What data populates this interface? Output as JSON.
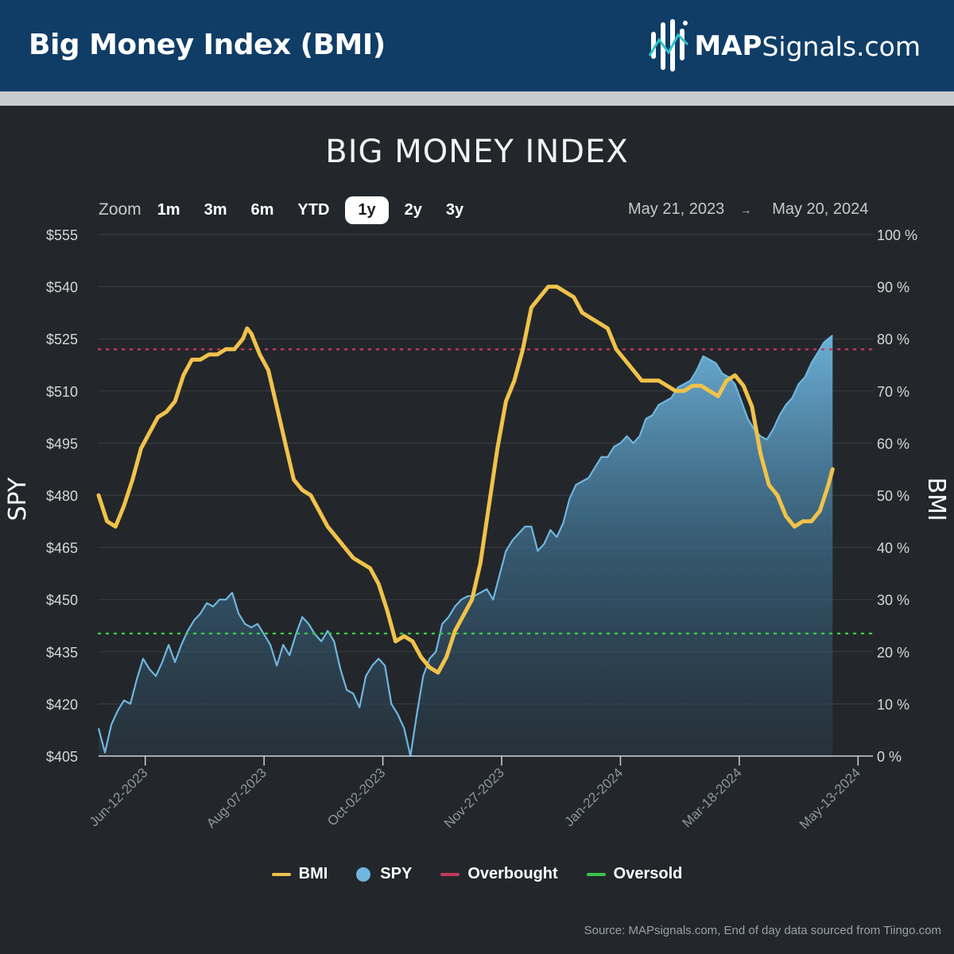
{
  "header": {
    "title": "Big Money Index (BMI)",
    "brand_strong": "MAP",
    "brand_rest": "Signals.com"
  },
  "toolbar": {
    "zoom_label": "Zoom",
    "zoom_options": [
      "1m",
      "3m",
      "6m",
      "YTD",
      "1y",
      "2y",
      "3y"
    ],
    "zoom_selected": "1y",
    "range_start": "May 21, 2023",
    "range_arrow": "→",
    "range_end": "May 20, 2024"
  },
  "colors": {
    "bmi": "#f0c24a",
    "spy": "#6fb6df",
    "overbought": "#c23a5a",
    "oversold": "#3cc24a"
  },
  "chart_data": {
    "type": "line",
    "title": "BIG MONEY INDEX",
    "ylabel_left": "SPY",
    "ylabel_right": "BMI",
    "y_left_ticks": [
      "$405",
      "$420",
      "$435",
      "$450",
      "$465",
      "$480",
      "$495",
      "$510",
      "$525",
      "$540",
      "$555"
    ],
    "y_left_range": [
      405,
      555
    ],
    "y_right_ticks": [
      "0 %",
      "10 %",
      "20 %",
      "30 %",
      "40 %",
      "50 %",
      "60 %",
      "70 %",
      "80 %",
      "90 %",
      "100 %"
    ],
    "y_right_range": [
      0,
      100
    ],
    "x_ticks": [
      {
        "label": "Jun-12-2023",
        "day": 22
      },
      {
        "label": "Aug-07-2023",
        "day": 78
      },
      {
        "label": "Oct-02-2023",
        "day": 134
      },
      {
        "label": "Nov-27-2023",
        "day": 190
      },
      {
        "label": "Jan-22-2024",
        "day": 246
      },
      {
        "label": "Mar-18-2024",
        "day": 302
      },
      {
        "label": "May-13-2024",
        "day": 358
      }
    ],
    "x_range_days": [
      0,
      365
    ],
    "overbought_level": 78,
    "oversold_level": 23.5,
    "legend": [
      "BMI",
      "SPY",
      "Overbought",
      "Oversold"
    ],
    "series": [
      {
        "name": "BMI",
        "unit": "%",
        "points": [
          [
            0,
            50
          ],
          [
            4,
            45
          ],
          [
            8,
            44
          ],
          [
            12,
            48
          ],
          [
            16,
            53
          ],
          [
            20,
            59
          ],
          [
            24,
            62
          ],
          [
            28,
            65
          ],
          [
            32,
            66
          ],
          [
            36,
            68
          ],
          [
            40,
            73
          ],
          [
            44,
            76
          ],
          [
            48,
            76
          ],
          [
            52,
            77
          ],
          [
            56,
            77
          ],
          [
            60,
            78
          ],
          [
            64,
            78
          ],
          [
            68,
            80
          ],
          [
            70,
            82
          ],
          [
            72,
            81
          ],
          [
            76,
            77
          ],
          [
            80,
            74
          ],
          [
            84,
            67
          ],
          [
            88,
            60
          ],
          [
            92,
            53
          ],
          [
            96,
            51
          ],
          [
            100,
            50
          ],
          [
            104,
            47
          ],
          [
            108,
            44
          ],
          [
            112,
            42
          ],
          [
            116,
            40
          ],
          [
            120,
            38
          ],
          [
            124,
            37
          ],
          [
            128,
            36
          ],
          [
            132,
            33
          ],
          [
            136,
            28
          ],
          [
            140,
            22
          ],
          [
            144,
            23
          ],
          [
            148,
            22
          ],
          [
            152,
            19
          ],
          [
            156,
            17
          ],
          [
            160,
            16
          ],
          [
            164,
            19
          ],
          [
            168,
            24
          ],
          [
            172,
            27
          ],
          [
            176,
            30
          ],
          [
            180,
            37
          ],
          [
            184,
            48
          ],
          [
            188,
            59
          ],
          [
            192,
            68
          ],
          [
            196,
            72
          ],
          [
            200,
            78
          ],
          [
            204,
            86
          ],
          [
            208,
            88
          ],
          [
            212,
            90
          ],
          [
            216,
            90
          ],
          [
            220,
            89
          ],
          [
            224,
            88
          ],
          [
            228,
            85
          ],
          [
            232,
            84
          ],
          [
            236,
            83
          ],
          [
            240,
            82
          ],
          [
            244,
            78
          ],
          [
            248,
            76
          ],
          [
            252,
            74
          ],
          [
            256,
            72
          ],
          [
            260,
            72
          ],
          [
            264,
            72
          ],
          [
            268,
            71
          ],
          [
            272,
            70
          ],
          [
            276,
            70
          ],
          [
            280,
            71
          ],
          [
            284,
            71
          ],
          [
            288,
            70
          ],
          [
            292,
            69
          ],
          [
            296,
            72
          ],
          [
            300,
            73
          ],
          [
            304,
            71
          ],
          [
            308,
            67
          ],
          [
            312,
            58
          ],
          [
            316,
            52
          ],
          [
            320,
            50
          ],
          [
            324,
            46
          ],
          [
            328,
            44
          ],
          [
            332,
            45
          ],
          [
            336,
            45
          ],
          [
            340,
            47
          ],
          [
            344,
            52
          ],
          [
            346,
            55
          ]
        ]
      },
      {
        "name": "SPY",
        "unit": "$",
        "points": [
          [
            0,
            413
          ],
          [
            3,
            406
          ],
          [
            6,
            414
          ],
          [
            9,
            418
          ],
          [
            12,
            421
          ],
          [
            15,
            420
          ],
          [
            18,
            427
          ],
          [
            21,
            433
          ],
          [
            24,
            430
          ],
          [
            27,
            428
          ],
          [
            30,
            432
          ],
          [
            33,
            437
          ],
          [
            36,
            432
          ],
          [
            39,
            437
          ],
          [
            42,
            441
          ],
          [
            45,
            444
          ],
          [
            48,
            446
          ],
          [
            51,
            449
          ],
          [
            54,
            448
          ],
          [
            57,
            450
          ],
          [
            60,
            450
          ],
          [
            63,
            452
          ],
          [
            66,
            446
          ],
          [
            69,
            443
          ],
          [
            72,
            442
          ],
          [
            75,
            443
          ],
          [
            78,
            440
          ],
          [
            81,
            437
          ],
          [
            84,
            431
          ],
          [
            87,
            437
          ],
          [
            90,
            434
          ],
          [
            93,
            440
          ],
          [
            96,
            445
          ],
          [
            99,
            443
          ],
          [
            102,
            440
          ],
          [
            105,
            438
          ],
          [
            108,
            441
          ],
          [
            111,
            438
          ],
          [
            114,
            430
          ],
          [
            117,
            424
          ],
          [
            120,
            423
          ],
          [
            123,
            419
          ],
          [
            126,
            428
          ],
          [
            129,
            431
          ],
          [
            132,
            433
          ],
          [
            135,
            431
          ],
          [
            138,
            420
          ],
          [
            141,
            417
          ],
          [
            144,
            413
          ],
          [
            147,
            405
          ],
          [
            150,
            417
          ],
          [
            153,
            428
          ],
          [
            156,
            433
          ],
          [
            159,
            435
          ],
          [
            162,
            443
          ],
          [
            165,
            445
          ],
          [
            168,
            448
          ],
          [
            171,
            450
          ],
          [
            174,
            451
          ],
          [
            177,
            451
          ],
          [
            180,
            452
          ],
          [
            183,
            453
          ],
          [
            186,
            450
          ],
          [
            189,
            457
          ],
          [
            192,
            464
          ],
          [
            195,
            467
          ],
          [
            198,
            469
          ],
          [
            201,
            471
          ],
          [
            204,
            471
          ],
          [
            207,
            464
          ],
          [
            210,
            466
          ],
          [
            213,
            470
          ],
          [
            216,
            468
          ],
          [
            219,
            472
          ],
          [
            222,
            479
          ],
          [
            225,
            483
          ],
          [
            228,
            484
          ],
          [
            231,
            485
          ],
          [
            234,
            488
          ],
          [
            237,
            491
          ],
          [
            240,
            491
          ],
          [
            243,
            494
          ],
          [
            246,
            495
          ],
          [
            249,
            497
          ],
          [
            252,
            495
          ],
          [
            255,
            497
          ],
          [
            258,
            502
          ],
          [
            261,
            503
          ],
          [
            264,
            506
          ],
          [
            267,
            507
          ],
          [
            270,
            508
          ],
          [
            273,
            511
          ],
          [
            276,
            512
          ],
          [
            279,
            513
          ],
          [
            282,
            516
          ],
          [
            285,
            520
          ],
          [
            288,
            519
          ],
          [
            291,
            518
          ],
          [
            294,
            515
          ],
          [
            297,
            514
          ],
          [
            300,
            512
          ],
          [
            303,
            507
          ],
          [
            306,
            502
          ],
          [
            309,
            499
          ],
          [
            312,
            497
          ],
          [
            315,
            496
          ],
          [
            318,
            499
          ],
          [
            321,
            503
          ],
          [
            324,
            506
          ],
          [
            327,
            508
          ],
          [
            330,
            512
          ],
          [
            333,
            514
          ],
          [
            336,
            518
          ],
          [
            339,
            521
          ],
          [
            342,
            524
          ],
          [
            346,
            526
          ]
        ]
      }
    ]
  },
  "footer": {
    "source": "Source: MAPsignals.com, End of day data sourced from Tiingo.com"
  }
}
